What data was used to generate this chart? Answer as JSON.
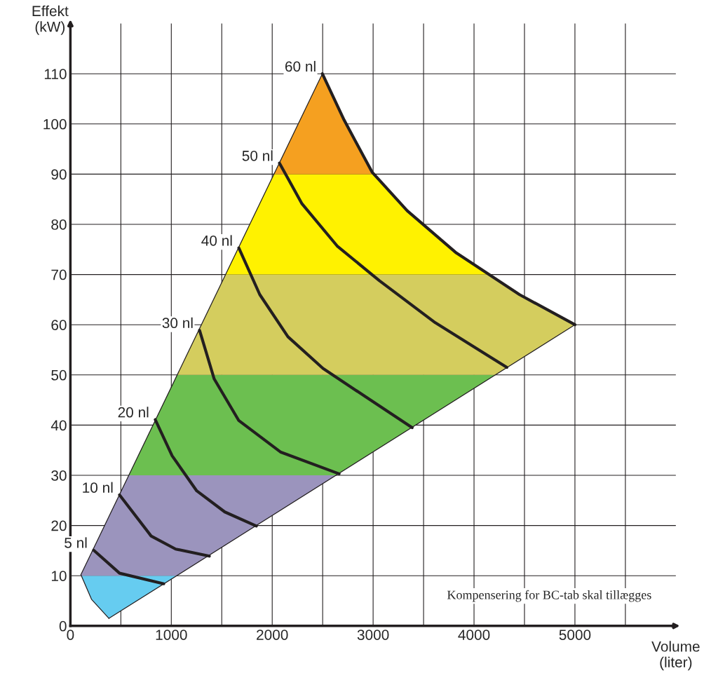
{
  "chart_data": {
    "type": "line",
    "xlabel": "Volume\n(liter)",
    "ylabel": "Effekt\n(kW)",
    "xlim": [
      0,
      6000
    ],
    "ylim": [
      0,
      120
    ],
    "xticks": [
      0,
      {
        "value": 500,
        "label": null
      },
      1000,
      {
        "value": 1500,
        "label": null
      },
      2000,
      {
        "value": 2500,
        "label": null
      },
      3000,
      {
        "value": 3500,
        "label": null
      },
      4000,
      {
        "value": 4500,
        "label": null
      },
      5000,
      {
        "value": 5500,
        "label": null
      }
    ],
    "yticks": [
      0,
      10,
      20,
      30,
      40,
      50,
      60,
      70,
      80,
      90,
      100,
      110
    ],
    "grid": true,
    "legend": false,
    "bands": [
      {
        "axis": "y",
        "from": 0,
        "to": 10,
        "color": "#66ccf0"
      },
      {
        "axis": "y",
        "from": 10,
        "to": 30,
        "color": "#9b94bd"
      },
      {
        "axis": "y",
        "from": 30,
        "to": 50,
        "color": "#6cbf50"
      },
      {
        "axis": "y",
        "from": 50,
        "to": 70,
        "color": "#d4cd5e"
      },
      {
        "axis": "y",
        "from": 70,
        "to": 90,
        "color": "#fff200"
      },
      {
        "axis": "y",
        "from": 90,
        "to": 110,
        "color": "#f5a020"
      }
    ],
    "series": [
      {
        "color": "#231f20",
        "x": [
          104,
          2497
        ],
        "values": [
          10.2,
          110
        ]
      },
      {
        "name": "60 nl",
        "color": "#231f20",
        "x": [
          2497,
          2712,
          2990,
          3338,
          3825,
          4451,
          5000
        ],
        "values": [
          110,
          100.8,
          90.4,
          82.7,
          74.3,
          66.0,
          60.0
        ]
      },
      {
        "color": "#231f20",
        "x": [
          5000,
          382
        ],
        "values": [
          60,
          1.5
        ]
      },
      {
        "color": "#231f20",
        "x": [
          382,
          209,
          104
        ],
        "values": [
          1.5,
          5.3,
          10.2
        ]
      },
      {
        "name": "5 nl",
        "color": "#231f20",
        "x": [
          230,
          487,
          925
        ],
        "values": [
          15.1,
          10.5,
          8.4
        ]
      },
      {
        "name": "10 nl",
        "color": "#231f20",
        "x": [
          487,
          800,
          1043,
          1377
        ],
        "values": [
          26.1,
          17.9,
          15.3,
          13.9
        ]
      },
      {
        "name": "20 nl",
        "color": "#231f20",
        "x": [
          841,
          1008,
          1252,
          1530,
          1843
        ],
        "values": [
          41.1,
          33.9,
          26.9,
          22.7,
          19.9
        ]
      },
      {
        "name": "30 nl",
        "color": "#231f20",
        "x": [
          1280,
          1425,
          1669,
          2086,
          2663
        ],
        "values": [
          58.9,
          49.2,
          40.9,
          34.6,
          30.3
        ]
      },
      {
        "name": "40 nl",
        "color": "#231f20",
        "x": [
          1669,
          1877,
          2156,
          2503,
          2921,
          3387
        ],
        "values": [
          75.3,
          66.0,
          57.6,
          51.3,
          45.7,
          39.5
        ]
      },
      {
        "name": "50 nl",
        "color": "#231f20",
        "x": [
          2072,
          2295,
          2643,
          3060,
          3616,
          4325
        ],
        "values": [
          92.2,
          84.1,
          75.7,
          68.8,
          60.4,
          51.5
        ]
      }
    ],
    "annotations": [
      "Kompensering for BC-tab skal tillægges"
    ]
  }
}
